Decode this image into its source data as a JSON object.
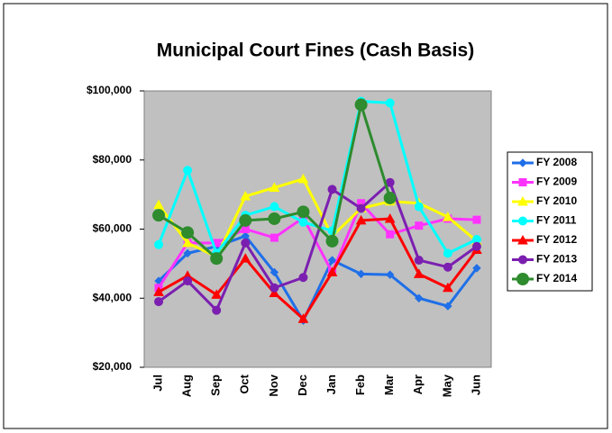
{
  "chart_data": {
    "type": "line",
    "title": "Municipal Court Fines (Cash Basis)",
    "categories": [
      "Jul",
      "Aug",
      "Sep",
      "Oct",
      "Nov",
      "Dec",
      "Jan",
      "Feb",
      "Mar",
      "Apr",
      "May",
      "Jun"
    ],
    "ylim": [
      20000,
      100000
    ],
    "yticks": [
      {
        "value": 20000,
        "label": "$20,000"
      },
      {
        "value": 40000,
        "label": "$40,000"
      },
      {
        "value": 60000,
        "label": "$60,000"
      },
      {
        "value": 80000,
        "label": "$80,000"
      },
      {
        "value": 100000,
        "label": "$100,000"
      }
    ],
    "grid": false,
    "legend": "right",
    "series": [
      {
        "name": "FY 2008",
        "color": "#1f6fe8",
        "marker": "diamond",
        "values": [
          45000,
          53000,
          55000,
          58000,
          47500,
          33500,
          51000,
          47000,
          46800,
          40000,
          37700,
          48700
        ]
      },
      {
        "name": "FY 2009",
        "color": "#ff33ff",
        "marker": "square",
        "values": [
          43000,
          56000,
          56000,
          60000,
          57500,
          63300,
          47500,
          67500,
          58500,
          61000,
          63000,
          62700
        ]
      },
      {
        "name": "FY 2010",
        "color": "#ffff00",
        "marker": "triangle",
        "values": [
          67000,
          56000,
          52000,
          69500,
          72000,
          74500,
          58000,
          66000,
          68000,
          67500,
          63500,
          56500
        ]
      },
      {
        "name": "FY 2011",
        "color": "#00ffff",
        "marker": "circle",
        "values": [
          55500,
          77000,
          53000,
          64000,
          66500,
          62000,
          59500,
          97000,
          96500,
          66500,
          53000,
          57000
        ]
      },
      {
        "name": "FY 2012",
        "color": "#ff0000",
        "marker": "triangle",
        "values": [
          41800,
          46500,
          41000,
          51500,
          41500,
          34000,
          47500,
          62500,
          63000,
          47000,
          43000,
          54000
        ]
      },
      {
        "name": "FY 2013",
        "color": "#7b1fb0",
        "marker": "circle",
        "values": [
          39000,
          45000,
          36500,
          56000,
          43000,
          46000,
          71500,
          66000,
          73500,
          51000,
          49000,
          55000
        ]
      },
      {
        "name": "FY 2014",
        "color": "#2e8b2e",
        "marker": "bigcircle",
        "values": [
          64000,
          59000,
          51500,
          62500,
          63000,
          65000,
          56500,
          96000,
          69000,
          null,
          null,
          null
        ]
      }
    ]
  }
}
